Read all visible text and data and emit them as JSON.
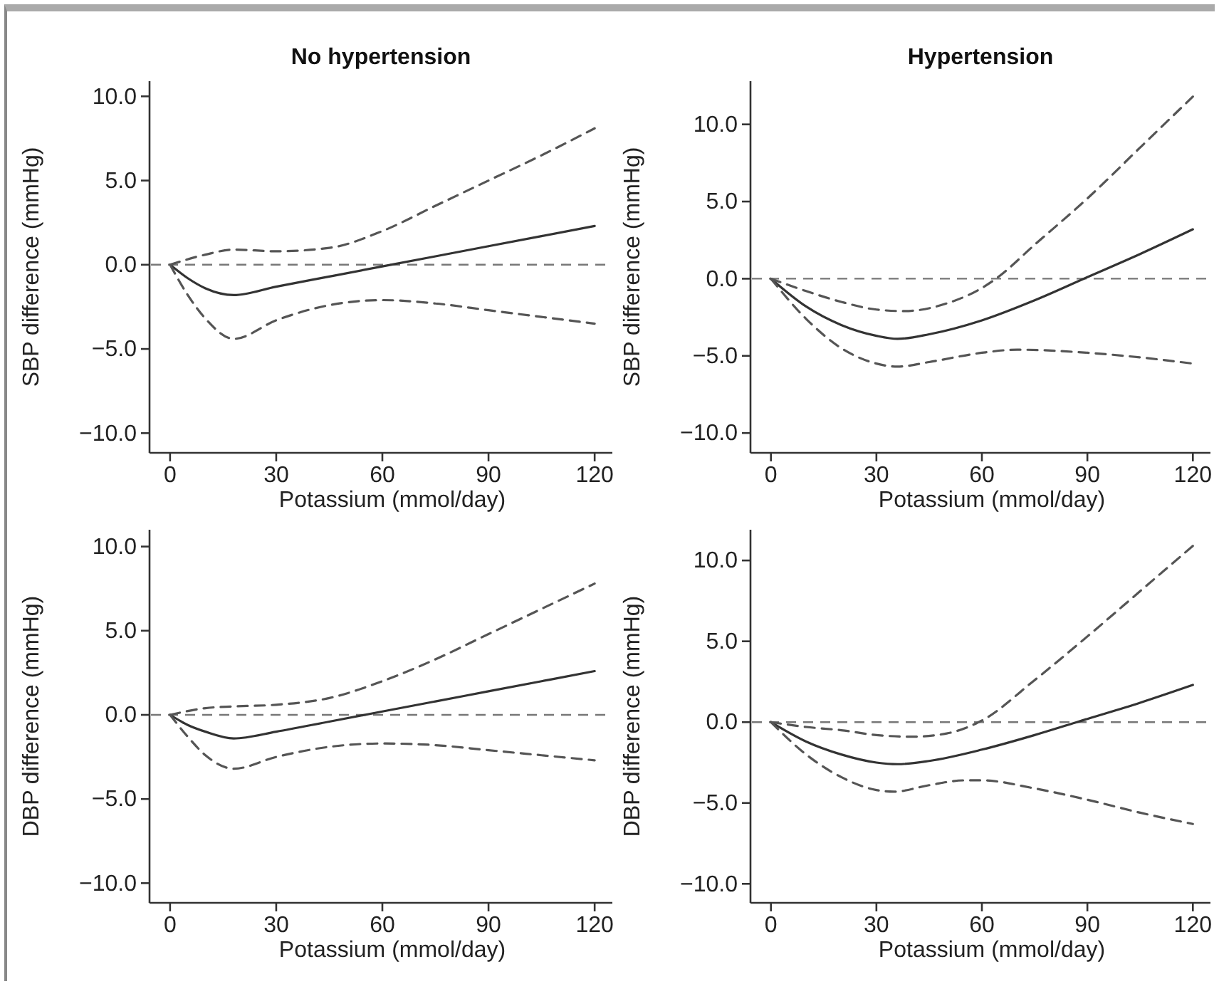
{
  "chart_data": [
    {
      "type": "line",
      "title": "No hypertension",
      "xlabel": "Potassium (mmol/day)",
      "ylabel": "SBP difference (mmHg)",
      "xlim": [
        -5,
        125
      ],
      "ylim": [
        -11,
        10.9
      ],
      "xticks": [
        0,
        30,
        60,
        90,
        120
      ],
      "yticks": [
        {
          "value": 10,
          "label": "10.0"
        },
        {
          "value": 5,
          "label": "5.0"
        },
        {
          "value": 0,
          "label": "0.0"
        },
        {
          "value": -5,
          "label": "−5.0"
        },
        {
          "value": -10,
          "label": "−10.0"
        }
      ],
      "ref_lines": [
        {
          "axis": "y",
          "value": 0,
          "color": "#777777",
          "line_style": "dashed"
        }
      ],
      "series": [
        {
          "color": "#333333",
          "line_style": "solid",
          "x": [
            0,
            5,
            10,
            18,
            30,
            45,
            60,
            75,
            90,
            105,
            120
          ],
          "values": [
            0,
            -0.8,
            -1.4,
            -1.8,
            -1.3,
            -0.7,
            -0.1,
            0.5,
            1.1,
            1.7,
            2.3
          ]
        },
        {
          "color": "#555555",
          "line_style": "dashed",
          "x": [
            0,
            10,
            18,
            30,
            45,
            60,
            75,
            90,
            105,
            120
          ],
          "values": [
            0,
            0.6,
            0.9,
            0.8,
            1.0,
            2.0,
            3.5,
            5.0,
            6.5,
            8.1
          ]
        },
        {
          "color": "#555555",
          "line_style": "dashed",
          "x": [
            0,
            5,
            10,
            18,
            30,
            45,
            60,
            75,
            90,
            105,
            120
          ],
          "values": [
            0,
            -1.8,
            -3.2,
            -4.4,
            -3.3,
            -2.4,
            -2.1,
            -2.3,
            -2.7,
            -3.1,
            -3.5
          ]
        }
      ]
    },
    {
      "type": "line",
      "title": "Hypertension",
      "xlabel": "Potassium (mmol/day)",
      "ylabel": "SBP difference (mmHg)",
      "xlim": [
        -5,
        125
      ],
      "ylim": [
        -11.1,
        12.8
      ],
      "xticks": [
        0,
        30,
        60,
        90,
        120
      ],
      "yticks": [
        {
          "value": 10,
          "label": "10.0"
        },
        {
          "value": 5,
          "label": "5.0"
        },
        {
          "value": 0,
          "label": "0.0"
        },
        {
          "value": -5,
          "label": "−5.0"
        },
        {
          "value": -10,
          "label": "−10.0"
        }
      ],
      "ref_lines": [
        {
          "axis": "y",
          "value": 0,
          "color": "#777777",
          "line_style": "dashed"
        }
      ],
      "series": [
        {
          "color": "#333333",
          "line_style": "solid",
          "x": [
            0,
            10,
            20,
            30,
            36,
            45,
            60,
            75,
            90,
            105,
            120
          ],
          "values": [
            0,
            -1.8,
            -3.0,
            -3.7,
            -3.9,
            -3.6,
            -2.7,
            -1.4,
            0.1,
            1.6,
            3.2
          ]
        },
        {
          "color": "#555555",
          "line_style": "dashed",
          "x": [
            0,
            10,
            20,
            30,
            38,
            50,
            60,
            64,
            75,
            90,
            105,
            120
          ],
          "values": [
            0,
            -0.8,
            -1.5,
            -2.0,
            -2.1,
            -1.6,
            -0.6,
            0,
            2.2,
            5.2,
            8.5,
            11.8
          ]
        },
        {
          "color": "#555555",
          "line_style": "dashed",
          "x": [
            0,
            10,
            20,
            30,
            36,
            45,
            60,
            70,
            90,
            105,
            120
          ],
          "values": [
            0,
            -2.6,
            -4.5,
            -5.5,
            -5.7,
            -5.4,
            -4.8,
            -4.6,
            -4.8,
            -5.1,
            -5.5
          ]
        }
      ]
    },
    {
      "type": "line",
      "xlabel": "Potassium (mmol/day)",
      "ylabel": "DBP difference (mmHg)",
      "xlim": [
        -5,
        125
      ],
      "ylim": [
        -11,
        11
      ],
      "xticks": [
        0,
        30,
        60,
        90,
        120
      ],
      "yticks": [
        {
          "value": 10,
          "label": "10.0"
        },
        {
          "value": 5,
          "label": "5.0"
        },
        {
          "value": 0,
          "label": "0.0"
        },
        {
          "value": -5,
          "label": "−5.0"
        },
        {
          "value": -10,
          "label": "−10.0"
        }
      ],
      "ref_lines": [
        {
          "axis": "y",
          "value": 0,
          "color": "#777777",
          "line_style": "dashed"
        }
      ],
      "series": [
        {
          "color": "#333333",
          "line_style": "solid",
          "x": [
            0,
            5,
            10,
            18,
            30,
            45,
            60,
            75,
            90,
            105,
            120
          ],
          "values": [
            0,
            -0.6,
            -1.0,
            -1.4,
            -1.0,
            -0.4,
            0.2,
            0.8,
            1.4,
            2.0,
            2.6
          ]
        },
        {
          "color": "#555555",
          "line_style": "dashed",
          "x": [
            0,
            10,
            18,
            30,
            45,
            60,
            75,
            90,
            105,
            120
          ],
          "values": [
            0,
            0.4,
            0.5,
            0.6,
            1.0,
            2.0,
            3.3,
            4.8,
            6.3,
            7.8
          ]
        },
        {
          "color": "#555555",
          "line_style": "dashed",
          "x": [
            0,
            5,
            10,
            18,
            30,
            45,
            60,
            75,
            90,
            105,
            120
          ],
          "values": [
            0,
            -1.3,
            -2.4,
            -3.2,
            -2.5,
            -1.9,
            -1.7,
            -1.8,
            -2.1,
            -2.4,
            -2.7
          ]
        }
      ]
    },
    {
      "type": "line",
      "xlabel": "Potassium (mmol/day)",
      "ylabel": "DBP difference (mmHg)",
      "xlim": [
        -5,
        125
      ],
      "ylim": [
        -11,
        11.9
      ],
      "xticks": [
        0,
        30,
        60,
        90,
        120
      ],
      "yticks": [
        {
          "value": 10,
          "label": "10.0"
        },
        {
          "value": 5,
          "label": "5.0"
        },
        {
          "value": 0,
          "label": "0.0"
        },
        {
          "value": -5,
          "label": "−5.0"
        },
        {
          "value": -10,
          "label": "−10.0"
        }
      ],
      "ref_lines": [
        {
          "axis": "y",
          "value": 0,
          "color": "#777777",
          "line_style": "dashed"
        }
      ],
      "series": [
        {
          "color": "#333333",
          "line_style": "solid",
          "x": [
            0,
            10,
            20,
            30,
            36,
            45,
            60,
            75,
            87,
            90,
            105,
            120
          ],
          "values": [
            0,
            -1.2,
            -2.0,
            -2.5,
            -2.6,
            -2.4,
            -1.7,
            -0.8,
            0,
            0.2,
            1.2,
            2.3
          ]
        },
        {
          "color": "#555555",
          "line_style": "dashed",
          "x": [
            0,
            10,
            20,
            30,
            40,
            50,
            60,
            75,
            90,
            105,
            120
          ],
          "values": [
            0,
            -0.3,
            -0.5,
            -0.8,
            -0.9,
            -0.7,
            0.1,
            2.6,
            5.3,
            8.1,
            10.9
          ]
        },
        {
          "color": "#555555",
          "line_style": "dashed",
          "x": [
            0,
            10,
            20,
            30,
            35,
            45,
            55,
            60,
            75,
            90,
            105,
            120
          ],
          "values": [
            0,
            -2.0,
            -3.4,
            -4.2,
            -4.3,
            -3.9,
            -3.6,
            -3.6,
            -4.1,
            -4.8,
            -5.6,
            -6.3
          ]
        }
      ]
    }
  ]
}
